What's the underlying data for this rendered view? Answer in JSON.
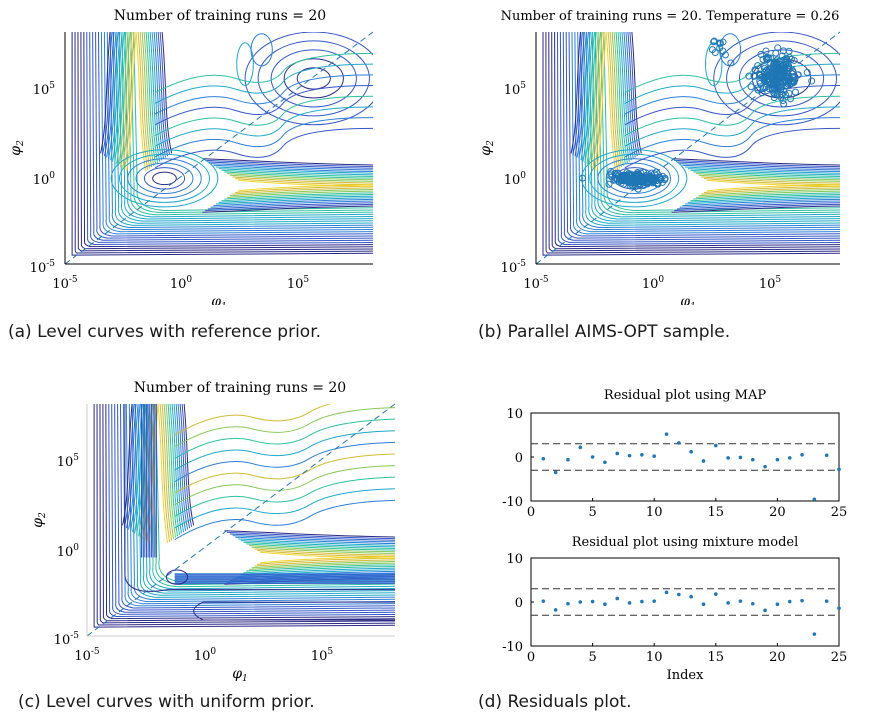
{
  "colors": {
    "contour_palette": [
      "#2b2a86",
      "#3558c7",
      "#2d7fd6",
      "#1fa8c9",
      "#2fc0a0",
      "#86c85a",
      "#d2bb35",
      "#f2d42b"
    ],
    "point": "#1f77b4",
    "dashed": "#1f77b4",
    "threshold": "#333333"
  },
  "captions": {
    "a": "(a) Level curves with reference prior.",
    "b": "(b) Parallel AIMS-OPT sample.",
    "c": "(c) Level curves with uniform prior.",
    "d": "(d) Residuals plot."
  },
  "chart_data": [
    {
      "id": "a",
      "type": "contour",
      "title": "Number of training runs = 20",
      "xlabel": "φ1",
      "ylabel": "φ2",
      "x_scale": "log",
      "y_scale": "log",
      "xlim_exp": [
        -5,
        8
      ],
      "ylim_exp": [
        -5,
        8
      ],
      "xticks": [
        "10-5",
        "100",
        "105"
      ],
      "yticks": [
        "10-5",
        "100",
        "105"
      ],
      "reference_line": "y = x (dashed)"
    },
    {
      "id": "b",
      "type": "contour+scatter",
      "title": "Number of training runs = 20. Temperature = 0.26",
      "xlabel": "φ1",
      "ylabel": "φ2",
      "x_scale": "log",
      "y_scale": "log",
      "xlim_exp": [
        -5,
        8
      ],
      "ylim_exp": [
        -5,
        8
      ],
      "xticks": [
        "10-5",
        "100",
        "105"
      ],
      "yticks": [
        "10-5",
        "100",
        "105"
      ],
      "sample_clusters": [
        {
          "center_log10": [
            -0.7,
            -0.25
          ]
        },
        {
          "center_log10": [
            5.3,
            5.5
          ]
        },
        {
          "center_log10": [
            2.8,
            7.1
          ]
        }
      ]
    },
    {
      "id": "c",
      "type": "contour",
      "title": "Number of training runs = 20",
      "xlabel": "φ1",
      "ylabel": "φ2",
      "x_scale": "log",
      "y_scale": "log",
      "xlim_exp": [
        -5,
        8
      ],
      "ylim_exp": [
        -5,
        8
      ],
      "xticks": [
        "10-5",
        "100",
        "105"
      ],
      "yticks": [
        "10-5",
        "100",
        "105"
      ]
    },
    {
      "id": "d1",
      "type": "scatter",
      "title": "Residual plot using MAP",
      "xlim": [
        0,
        25
      ],
      "ylim": [
        -10,
        10
      ],
      "xticks": [
        "0",
        "5",
        "10",
        "15",
        "20",
        "25"
      ],
      "yticks": [
        "10",
        "0",
        "-10"
      ],
      "hlines": [
        3,
        -3
      ],
      "x": [
        1,
        2,
        3,
        4,
        5,
        6,
        7,
        8,
        9,
        10,
        11,
        12,
        13,
        14,
        15,
        16,
        17,
        18,
        19,
        20,
        21,
        22,
        23,
        24,
        25
      ],
      "y": [
        -0.4,
        -3.5,
        -0.6,
        2.2,
        0,
        -1.2,
        0.8,
        0.3,
        0.5,
        0.2,
        5.2,
        3.2,
        1.2,
        -0.9,
        2.6,
        -0.2,
        -0.1,
        -0.6,
        -2.2,
        -0.6,
        -0.2,
        0.5,
        -9.6,
        0.4,
        -2.8
      ]
    },
    {
      "id": "d2",
      "type": "scatter",
      "title": "Residual plot using mixture model",
      "xlabel": "Index",
      "xlim": [
        0,
        25
      ],
      "ylim": [
        -10,
        10
      ],
      "xticks": [
        "0",
        "5",
        "10",
        "15",
        "20",
        "25"
      ],
      "yticks": [
        "10",
        "0",
        "-10"
      ],
      "hlines": [
        3,
        -3
      ],
      "x": [
        1,
        2,
        3,
        4,
        5,
        6,
        7,
        8,
        9,
        10,
        11,
        12,
        13,
        14,
        15,
        16,
        17,
        18,
        19,
        20,
        21,
        22,
        23,
        24,
        25
      ],
      "y": [
        0.2,
        -1.8,
        -0.4,
        0,
        0.1,
        -0.5,
        0.8,
        -0.2,
        0.1,
        0.2,
        2.2,
        1.7,
        1.2,
        -0.5,
        1.8,
        -0.2,
        0.2,
        -0.4,
        -1.9,
        -0.5,
        0.1,
        0.3,
        -7.3,
        0.2,
        -1.4
      ]
    }
  ]
}
